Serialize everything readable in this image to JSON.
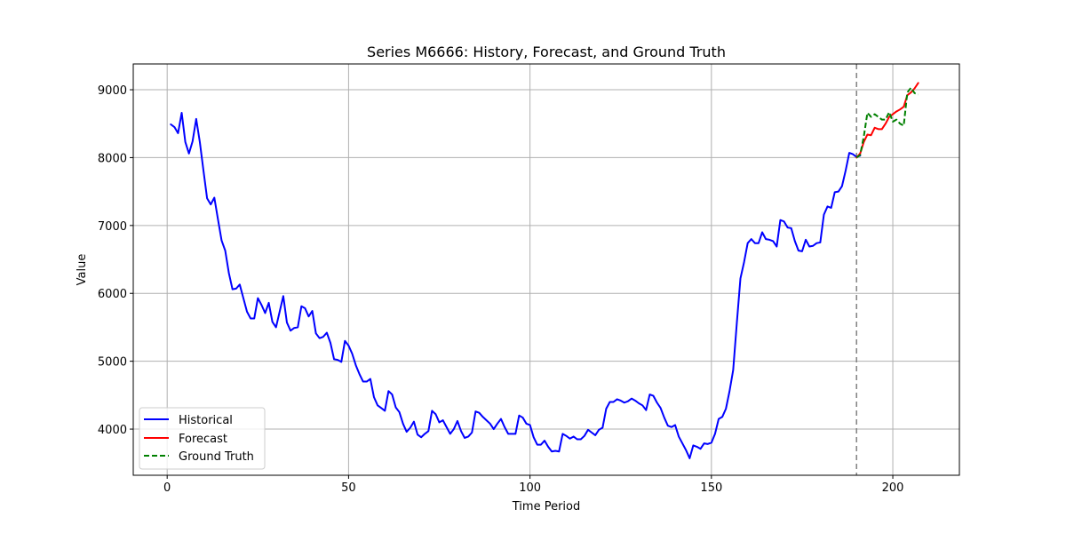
{
  "chart_data": {
    "type": "line",
    "title": "Series M6666: History, Forecast, and Ground Truth",
    "xlabel": "Time Period",
    "ylabel": "Value",
    "xlim": [
      -9.35,
      218.35
    ],
    "ylim": [
      3320,
      9380
    ],
    "xticks": [
      0,
      50,
      100,
      150,
      200
    ],
    "yticks": [
      4000,
      5000,
      6000,
      7000,
      8000,
      9000
    ],
    "grid": true,
    "legend_position": "lower-left",
    "forecast_start": 190,
    "series": [
      {
        "name": "Historical",
        "color": "#0000ff",
        "style": "solid",
        "x_start": 1,
        "values": [
          8490,
          8450,
          8360,
          8660,
          8230,
          8060,
          8240,
          8570,
          8230,
          7810,
          7400,
          7310,
          7410,
          7090,
          6780,
          6630,
          6300,
          6060,
          6070,
          6130,
          5930,
          5730,
          5630,
          5630,
          5930,
          5830,
          5710,
          5860,
          5580,
          5500,
          5730,
          5960,
          5570,
          5450,
          5490,
          5500,
          5810,
          5780,
          5660,
          5740,
          5410,
          5340,
          5360,
          5420,
          5270,
          5030,
          5020,
          4990,
          5300,
          5230,
          5110,
          4940,
          4810,
          4700,
          4700,
          4740,
          4470,
          4350,
          4310,
          4270,
          4560,
          4510,
          4320,
          4250,
          4080,
          3960,
          4020,
          4110,
          3920,
          3880,
          3930,
          3970,
          4270,
          4220,
          4100,
          4130,
          4030,
          3930,
          4000,
          4120,
          3970,
          3870,
          3890,
          3950,
          4260,
          4240,
          4180,
          4130,
          4080,
          4000,
          4080,
          4150,
          4030,
          3930,
          3930,
          3930,
          4200,
          4170,
          4080,
          4060,
          3880,
          3770,
          3770,
          3830,
          3740,
          3670,
          3680,
          3670,
          3930,
          3900,
          3860,
          3890,
          3850,
          3850,
          3900,
          3990,
          3950,
          3910,
          3990,
          4020,
          4300,
          4400,
          4400,
          4440,
          4420,
          4390,
          4410,
          4450,
          4420,
          4380,
          4350,
          4280,
          4510,
          4490,
          4390,
          4310,
          4170,
          4050,
          4030,
          4060,
          3890,
          3790,
          3690,
          3570,
          3760,
          3740,
          3710,
          3790,
          3780,
          3800,
          3930,
          4150,
          4180,
          4300,
          4560,
          4870,
          5560,
          6220,
          6460,
          6740,
          6800,
          6740,
          6740,
          6900,
          6800,
          6790,
          6770,
          6690,
          7080,
          7060,
          6970,
          6960,
          6770,
          6630,
          6620,
          6790,
          6690,
          6700,
          6740,
          6750,
          7160,
          7280,
          7260,
          7490,
          7500,
          7580,
          7810,
          8070,
          8050,
          8010,
          8030
        ]
      },
      {
        "name": "Forecast",
        "color": "#ff0000",
        "style": "solid",
        "x_start": 190,
        "values": [
          8000,
          8060,
          8230,
          8340,
          8330,
          8440,
          8420,
          8420,
          8500,
          8600,
          8640,
          8680,
          8710,
          8750,
          8920,
          8960,
          9020,
          9100
        ]
      },
      {
        "name": "Ground Truth",
        "color": "#008000",
        "style": "dashed",
        "x_start": 190,
        "values": [
          8000,
          8040,
          8310,
          8660,
          8600,
          8640,
          8600,
          8560,
          8560,
          8670,
          8530,
          8560,
          8500,
          8470,
          8960,
          9030,
          8950,
          8930
        ]
      }
    ]
  }
}
